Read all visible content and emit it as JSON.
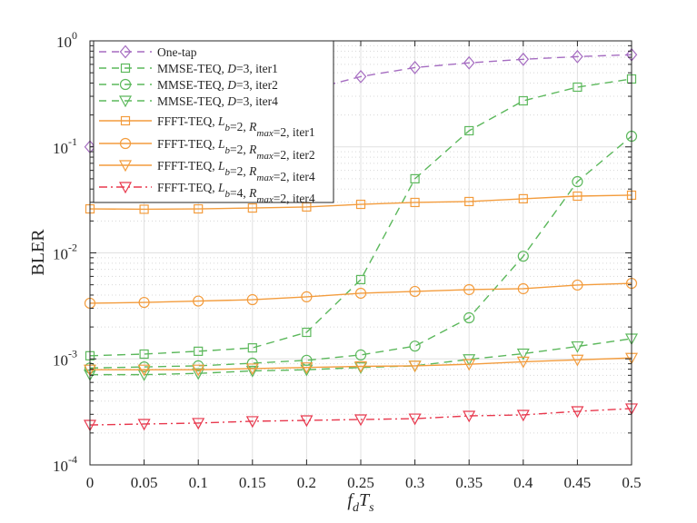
{
  "chart_data": {
    "type": "line",
    "title": "",
    "xlabel": "f_d T_s",
    "xlabel_parts": {
      "main1": "f",
      "sub1": "d",
      "main2": "T",
      "sub2": "s"
    },
    "ylabel": "BLER",
    "xscale": "linear",
    "yscale": "log",
    "xlim": [
      0,
      0.5
    ],
    "ylim": [
      0.0001,
      1
    ],
    "grid": true,
    "minor_grid": true,
    "legend_position": "top-left",
    "x": [
      0,
      0.05,
      0.1,
      0.15,
      0.2,
      0.25,
      0.3,
      0.35,
      0.4,
      0.45,
      0.5
    ],
    "xticks": [
      "0",
      "0.05",
      "0.1",
      "0.15",
      "0.2",
      "0.25",
      "0.3",
      "0.35",
      "0.4",
      "0.45",
      "0.5"
    ],
    "yticks": [
      {
        "value": 1,
        "base": "10",
        "exp": "0"
      },
      {
        "value": 0.1,
        "base": "10",
        "exp": "-1"
      },
      {
        "value": 0.01,
        "base": "10",
        "exp": "-2"
      },
      {
        "value": 0.001,
        "base": "10",
        "exp": "-3"
      },
      {
        "value": 0.0001,
        "base": "10",
        "exp": "-4"
      }
    ],
    "series": [
      {
        "name": "One-tap",
        "legend": [
          {
            "t": "One-tap"
          }
        ],
        "color": "#a56cc1",
        "dash": "dashed",
        "marker": "diamond",
        "values": [
          0.1,
          0.13,
          0.18,
          0.25,
          0.34,
          0.46,
          0.56,
          0.62,
          0.67,
          0.71,
          0.74
        ]
      },
      {
        "name": "MMSE-TEQ, D=3, iter1",
        "legend": [
          {
            "t": "MMSE-TEQ, "
          },
          {
            "t": "D",
            "i": true
          },
          {
            "t": "=3, iter1"
          }
        ],
        "color": "#5cb85c",
        "dash": "dashed",
        "marker": "square",
        "values": [
          0.00107,
          0.00111,
          0.00118,
          0.00127,
          0.00178,
          0.0056,
          0.05,
          0.142,
          0.272,
          0.366,
          0.437
        ]
      },
      {
        "name": "MMSE-TEQ, D=3, iter2",
        "legend": [
          {
            "t": "MMSE-TEQ, "
          },
          {
            "t": "D",
            "i": true
          },
          {
            "t": "=3, iter2"
          }
        ],
        "color": "#5cb85c",
        "dash": "dashed",
        "marker": "circle",
        "values": [
          0.00082,
          0.00084,
          0.00086,
          0.00091,
          0.00097,
          0.00109,
          0.00132,
          0.00244,
          0.0093,
          0.047,
          0.126
        ]
      },
      {
        "name": "MMSE-TEQ, D=3, iter4",
        "legend": [
          {
            "t": "MMSE-TEQ, "
          },
          {
            "t": "D",
            "i": true
          },
          {
            "t": "=3, iter4"
          }
        ],
        "color": "#5cb85c",
        "dash": "dashed",
        "marker": "triangle-down",
        "values": [
          0.00071,
          0.00071,
          0.00073,
          0.00077,
          0.00079,
          0.00083,
          0.00086,
          0.00099,
          0.00112,
          0.00131,
          0.00155
        ]
      },
      {
        "name": "FFFT-TEQ, Lb=2, Rmax=2, iter1",
        "legend": [
          {
            "t": "FFFT-TEQ, "
          },
          {
            "t": "L",
            "i": true,
            "sub": "b"
          },
          {
            "t": "=2, "
          },
          {
            "t": "R",
            "i": true,
            "sub": "max"
          },
          {
            "t": "=2, iter1"
          }
        ],
        "color": "#f39c3d",
        "dash": "solid",
        "marker": "square",
        "values": [
          0.026,
          0.0258,
          0.026,
          0.0265,
          0.0271,
          0.0287,
          0.0299,
          0.0305,
          0.0324,
          0.0343,
          0.035
        ]
      },
      {
        "name": "FFFT-TEQ, Lb=2, Rmax=2, iter2",
        "legend": [
          {
            "t": "FFFT-TEQ, "
          },
          {
            "t": "L",
            "i": true,
            "sub": "b"
          },
          {
            "t": "=2, "
          },
          {
            "t": "R",
            "i": true,
            "sub": "max"
          },
          {
            "t": "=2, iter2"
          }
        ],
        "color": "#f39c3d",
        "dash": "solid",
        "marker": "circle",
        "values": [
          0.00335,
          0.00341,
          0.00351,
          0.00362,
          0.00385,
          0.00416,
          0.00433,
          0.0045,
          0.00459,
          0.00497,
          0.00516
        ]
      },
      {
        "name": "FFFT-TEQ, Lb=2, Rmax=2, iter4",
        "legend": [
          {
            "t": "FFFT-TEQ, "
          },
          {
            "t": "L",
            "i": true,
            "sub": "b"
          },
          {
            "t": "=2, "
          },
          {
            "t": "R",
            "i": true,
            "sub": "max"
          },
          {
            "t": "=2, iter4"
          }
        ],
        "color": "#f39c3d",
        "dash": "solid",
        "marker": "triangle-down",
        "values": [
          0.00079,
          0.00079,
          0.00079,
          0.00081,
          0.00083,
          0.00085,
          0.00086,
          0.00089,
          0.00094,
          0.00098,
          0.00102
        ]
      },
      {
        "name": "FFFT-TEQ, Lb=4, Rmax=2, iter4",
        "legend": [
          {
            "t": "FFFT-TEQ, "
          },
          {
            "t": "L",
            "i": true,
            "sub": "b"
          },
          {
            "t": "=4, "
          },
          {
            "t": "R",
            "i": true,
            "sub": "max"
          },
          {
            "t": "=2, iter4"
          }
        ],
        "color": "#e8394e",
        "dash": "dashdot",
        "marker": "triangle-down",
        "values": [
          0.000238,
          0.000243,
          0.000248,
          0.000258,
          0.000263,
          0.000268,
          0.000273,
          0.00029,
          0.000296,
          0.00032,
          0.00034
        ]
      }
    ]
  }
}
